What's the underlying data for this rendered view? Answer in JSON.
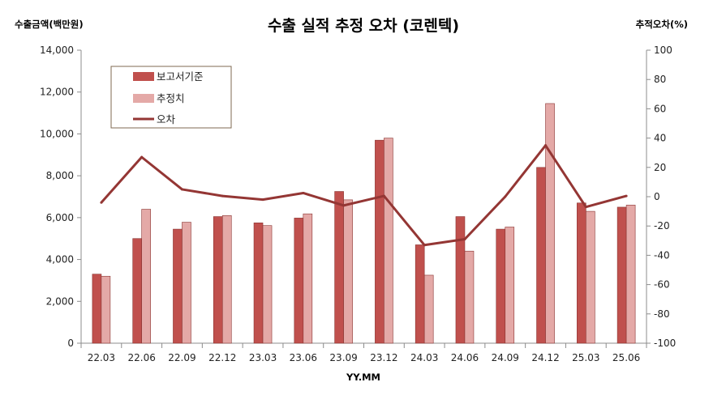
{
  "chart_data": {
    "type": "bar",
    "title": "수출 실적 추정 오차 (코렌텍)",
    "ylabel_left": "수출금액(백만원)",
    "ylabel_right": "추적오차(%)",
    "xlabel": "YY.MM",
    "categories": [
      "22.03",
      "22.06",
      "22.09",
      "22.12",
      "23.03",
      "23.06",
      "23.09",
      "23.12",
      "24.03",
      "24.06",
      "24.09",
      "24.12",
      "25.03",
      "25.06"
    ],
    "series": [
      {
        "name": "보고서기준",
        "type": "bar",
        "axis": "left",
        "color": "#c0504d",
        "values": [
          3300,
          5000,
          5450,
          6050,
          5750,
          5980,
          7250,
          9700,
          4700,
          6050,
          5450,
          8400,
          6700,
          6500
        ]
      },
      {
        "name": "추정치",
        "type": "bar",
        "axis": "left",
        "color": "#e4a9a7",
        "values": [
          3200,
          6400,
          5780,
          6100,
          5620,
          6180,
          6850,
          9800,
          3250,
          4400,
          5550,
          11450,
          6300,
          6600
        ]
      },
      {
        "name": "오차",
        "type": "line",
        "axis": "right",
        "color": "#943634",
        "values": [
          -4,
          27,
          5,
          0.5,
          -2,
          2.5,
          -6,
          0.5,
          -33,
          -29,
          0,
          35,
          -7,
          0.5
        ]
      }
    ],
    "ylim_left": [
      0,
      14000
    ],
    "yticks_left": [
      "0",
      "2,000",
      "4,000",
      "6,000",
      "8,000",
      "10,000",
      "12,000",
      "14,000"
    ],
    "ylim_right": [
      -100,
      100
    ],
    "yticks_right": [
      "-100",
      "-80",
      "-60",
      "-40",
      "-20",
      "0",
      "20",
      "40",
      "60",
      "80",
      "100"
    ],
    "legend_position": "top-left",
    "grid": false
  }
}
